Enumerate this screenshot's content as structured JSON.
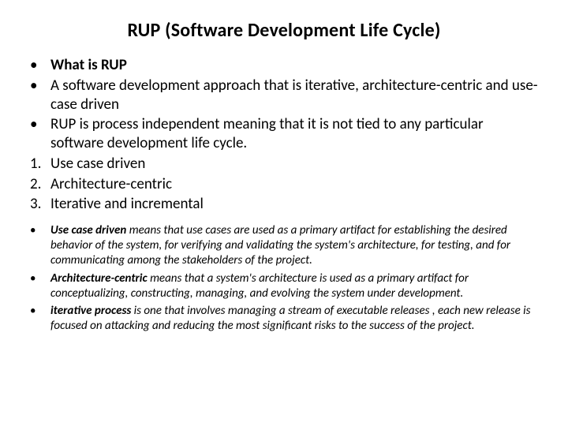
{
  "title": "RUP   (Software Development Life Cycle)",
  "block1": [
    {
      "marker": "•",
      "text": "What is RUP",
      "bold": true
    },
    {
      "marker": "•",
      "text": "A software development approach that is iterative, architecture-centric and use-case driven"
    },
    {
      "marker": "•",
      "text": "RUP is process independent meaning that it is not tied to any particular software  development life cycle."
    },
    {
      "marker": "1.",
      "text": " Use case driven"
    },
    {
      "marker": "2.",
      "text": " Architecture-centric"
    },
    {
      "marker": "3.",
      "text": " Iterative and incremental"
    }
  ],
  "block2": [
    {
      "marker": "•",
      "term": "Use case driven",
      "rest": " means that use cases are used as a primary artifact for establishing the desired behavior of the system, for verifying and validating the system's architecture, for testing, and for communicating among the stakeholders of the project."
    },
    {
      "marker": "•",
      "term": "Architecture-centric",
      "rest": " means that a system's architecture is used as a primary artifact for conceptualizing, constructing, managing, and evolving the system under development."
    },
    {
      "marker": "•",
      "term": "iterative process",
      "rest": " is one that involves managing a stream of executable releases , each new release is focused on attacking and reducing the most significant risks to the success of the project."
    }
  ],
  "style": {
    "background": "#ffffff",
    "text_color": "#000000",
    "title_fontsize": 24,
    "block1_fontsize": 19,
    "block2_fontsize": 15,
    "font_family": "Calibri"
  }
}
